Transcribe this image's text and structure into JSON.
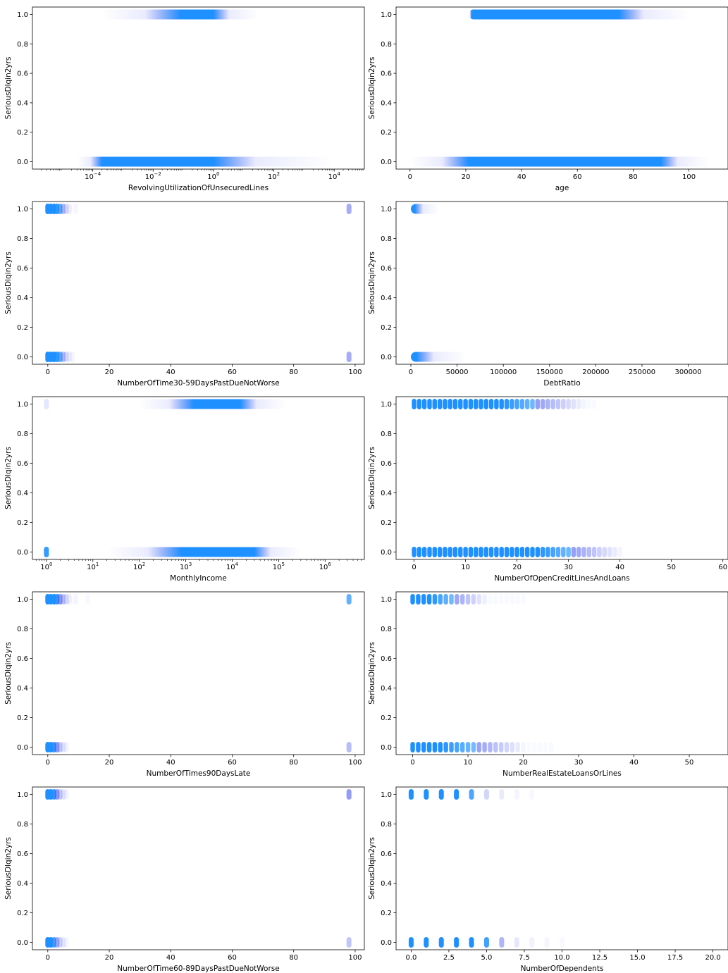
{
  "colors": {
    "point": "#1e90ff",
    "outlier": "#4b5cf0",
    "axis": "#000000",
    "background": "#ffffff"
  },
  "chart_data": [
    {
      "type": "scatter",
      "xlabel": "RevolvingUtilizationOfUnsecuredLines",
      "ylabel": "SeriousDlqin2yrs",
      "xscale": "log",
      "xlim": [
        1e-06,
        100000.0
      ],
      "ylim": [
        -0.05,
        1.05
      ],
      "xticks": [
        {
          "v": 0.0001,
          "b": "10",
          "e": "−4"
        },
        {
          "v": 0.01,
          "b": "10",
          "e": "−2"
        },
        {
          "v": 1,
          "b": "10",
          "e": "0"
        },
        {
          "v": 100,
          "b": "10",
          "e": "2"
        },
        {
          "v": 10000,
          "b": "10",
          "e": "4"
        }
      ],
      "yticks": [
        "0.0",
        "0.2",
        "0.4",
        "0.6",
        "0.8",
        "1.0"
      ],
      "bands": [
        {
          "y": 0,
          "from": 0.0002,
          "to": 1,
          "faint_from": 3e-05,
          "faint_to": 10000
        },
        {
          "y": 1,
          "from": 0.08,
          "to": 1,
          "faint_from": 0.0002,
          "faint_to": 30
        }
      ],
      "grid": false,
      "legend": "none"
    },
    {
      "type": "scatter",
      "xlabel": "age",
      "ylabel": "SeriousDlqin2yrs",
      "xscale": "linear",
      "xlim": [
        -5,
        114
      ],
      "ylim": [
        -0.05,
        1.05
      ],
      "xticks": [
        {
          "v": 0,
          "t": "0"
        },
        {
          "v": 20,
          "t": "20"
        },
        {
          "v": 40,
          "t": "40"
        },
        {
          "v": 60,
          "t": "60"
        },
        {
          "v": 80,
          "t": "80"
        },
        {
          "v": 100,
          "t": "100"
        }
      ],
      "yticks": [
        "0.0",
        "0.2",
        "0.4",
        "0.6",
        "0.8",
        "1.0"
      ],
      "bands": [
        {
          "y": 0,
          "from": 21,
          "to": 90,
          "faint_from": 0,
          "faint_to": 107
        },
        {
          "y": 1,
          "from": 22,
          "to": 75,
          "faint_from": 21,
          "faint_to": 100
        }
      ],
      "grid": false,
      "legend": "none"
    },
    {
      "type": "scatter",
      "xlabel": "NumberOfTime30-59DaysPastDueNotWorse",
      "ylabel": "SeriousDlqin2yrs",
      "xscale": "linear",
      "xlim": [
        -5,
        103
      ],
      "ylim": [
        -0.05,
        1.05
      ],
      "xticks": [
        {
          "v": 0,
          "t": "0"
        },
        {
          "v": 20,
          "t": "20"
        },
        {
          "v": 40,
          "t": "40"
        },
        {
          "v": 60,
          "t": "60"
        },
        {
          "v": 80,
          "t": "80"
        },
        {
          "v": 100,
          "t": "100"
        }
      ],
      "yticks": [
        "0.0",
        "0.2",
        "0.4",
        "0.6",
        "0.8",
        "1.0"
      ],
      "points": [
        {
          "x": 0,
          "y": 0,
          "a": 1
        },
        {
          "x": 1,
          "y": 0,
          "a": 1
        },
        {
          "x": 2,
          "y": 0,
          "a": 1
        },
        {
          "x": 3,
          "y": 0,
          "a": 0.9
        },
        {
          "x": 4,
          "y": 0,
          "a": 0.7
        },
        {
          "x": 5,
          "y": 0,
          "a": 0.4
        },
        {
          "x": 6,
          "y": 0,
          "a": 0.2
        },
        {
          "x": 7,
          "y": 0,
          "a": 0.1
        },
        {
          "x": 8,
          "y": 0,
          "a": 0.06
        },
        {
          "x": 98,
          "y": 0,
          "a": 0.5
        },
        {
          "x": 0,
          "y": 1,
          "a": 1
        },
        {
          "x": 1,
          "y": 1,
          "a": 1
        },
        {
          "x": 2,
          "y": 1,
          "a": 1
        },
        {
          "x": 3,
          "y": 1,
          "a": 0.9
        },
        {
          "x": 4,
          "y": 1,
          "a": 0.7
        },
        {
          "x": 5,
          "y": 1,
          "a": 0.4
        },
        {
          "x": 6,
          "y": 1,
          "a": 0.2
        },
        {
          "x": 7,
          "y": 1,
          "a": 0.1
        },
        {
          "x": 9,
          "y": 1,
          "a": 0.05
        },
        {
          "x": 98,
          "y": 1,
          "a": 0.5
        }
      ],
      "grid": false,
      "legend": "none"
    },
    {
      "type": "scatter",
      "xlabel": "DebtRatio",
      "ylabel": "SeriousDlqin2yrs",
      "xscale": "linear",
      "xlim": [
        -16000,
        343000
      ],
      "ylim": [
        -0.05,
        1.05
      ],
      "xticks": [
        {
          "v": 0,
          "t": "0"
        },
        {
          "v": 50000,
          "t": "50000"
        },
        {
          "v": 100000,
          "t": "100000"
        },
        {
          "v": 150000,
          "t": "150000"
        },
        {
          "v": 200000,
          "t": "200000"
        },
        {
          "v": 250000,
          "t": "250000"
        },
        {
          "v": 300000,
          "t": "300000"
        }
      ],
      "yticks": [
        "0.0",
        "0.2",
        "0.4",
        "0.6",
        "0.8",
        "1.0"
      ],
      "bands": [
        {
          "y": 0,
          "from": 0,
          "to": 6000,
          "faint_from": 0,
          "faint_to": 60000
        },
        {
          "y": 1,
          "from": 0,
          "to": 4000,
          "faint_from": 0,
          "faint_to": 30000
        }
      ],
      "grid": false,
      "legend": "none"
    },
    {
      "type": "scatter",
      "xlabel": "MonthlyIncome",
      "ylabel": "SeriousDlqin2yrs",
      "xscale": "log",
      "xlim": [
        0.5,
        7000000
      ],
      "ylim": [
        -0.05,
        1.05
      ],
      "xticks": [
        {
          "v": 1,
          "b": "10",
          "e": "0"
        },
        {
          "v": 10,
          "b": "10",
          "e": "1"
        },
        {
          "v": 100,
          "b": "10",
          "e": "2"
        },
        {
          "v": 1000,
          "b": "10",
          "e": "3"
        },
        {
          "v": 10000,
          "b": "10",
          "e": "4"
        },
        {
          "v": 100000,
          "b": "10",
          "e": "5"
        },
        {
          "v": 1000000,
          "b": "10",
          "e": "6"
        }
      ],
      "yticks": [
        "0.0",
        "0.2",
        "0.4",
        "0.6",
        "0.8",
        "1.0"
      ],
      "bands": [
        {
          "y": 0,
          "from": 800,
          "to": 30000,
          "faint_from": 20,
          "faint_to": 300000
        },
        {
          "y": 1,
          "from": 1500,
          "to": 15000,
          "faint_from": 100,
          "faint_to": 150000
        }
      ],
      "points": [
        {
          "x": 1,
          "y": 0,
          "a": 0.9
        },
        {
          "x": 1,
          "y": 1,
          "a": 0.15
        }
      ],
      "grid": false,
      "legend": "none"
    },
    {
      "type": "scatter",
      "xlabel": "NumberOfOpenCreditLinesAndLoans",
      "ylabel": "SeriousDlqin2yrs",
      "xscale": "linear",
      "xlim": [
        -3.5,
        61
      ],
      "ylim": [
        -0.05,
        1.05
      ],
      "xticks": [
        {
          "v": 0,
          "t": "0"
        },
        {
          "v": 10,
          "t": "10"
        },
        {
          "v": 20,
          "t": "20"
        },
        {
          "v": 30,
          "t": "30"
        },
        {
          "v": 40,
          "t": "40"
        },
        {
          "v": 50,
          "t": "50"
        },
        {
          "v": 60,
          "t": "60"
        }
      ],
      "yticks": [
        "0.0",
        "0.2",
        "0.4",
        "0.6",
        "0.8",
        "1.0"
      ],
      "discrete": [
        {
          "y": 0,
          "start": 0,
          "end": 40,
          "solid_to": 24,
          "fade_to": 40
        },
        {
          "y": 1,
          "start": 0,
          "end": 35,
          "solid_to": 17,
          "fade_to": 33
        }
      ],
      "grid": false,
      "legend": "none"
    },
    {
      "type": "scatter",
      "xlabel": "NumberOfTimes90DaysLate",
      "ylabel": "SeriousDlqin2yrs",
      "xscale": "linear",
      "xlim": [
        -5,
        103
      ],
      "ylim": [
        -0.05,
        1.05
      ],
      "xticks": [
        {
          "v": 0,
          "t": "0"
        },
        {
          "v": 20,
          "t": "20"
        },
        {
          "v": 40,
          "t": "40"
        },
        {
          "v": 60,
          "t": "60"
        },
        {
          "v": 80,
          "t": "80"
        },
        {
          "v": 100,
          "t": "100"
        }
      ],
      "yticks": [
        "0.0",
        "0.2",
        "0.4",
        "0.6",
        "0.8",
        "1.0"
      ],
      "points": [
        {
          "x": 0,
          "y": 0,
          "a": 1
        },
        {
          "x": 1,
          "y": 0,
          "a": 1
        },
        {
          "x": 2,
          "y": 0,
          "a": 0.9
        },
        {
          "x": 3,
          "y": 0,
          "a": 0.6
        },
        {
          "x": 4,
          "y": 0,
          "a": 0.3
        },
        {
          "x": 5,
          "y": 0,
          "a": 0.15
        },
        {
          "x": 6,
          "y": 0,
          "a": 0.08
        },
        {
          "x": 98,
          "y": 0,
          "a": 0.4
        },
        {
          "x": 0,
          "y": 1,
          "a": 1
        },
        {
          "x": 1,
          "y": 1,
          "a": 1
        },
        {
          "x": 2,
          "y": 1,
          "a": 1
        },
        {
          "x": 3,
          "y": 1,
          "a": 0.9
        },
        {
          "x": 4,
          "y": 1,
          "a": 0.6
        },
        {
          "x": 5,
          "y": 1,
          "a": 0.35
        },
        {
          "x": 6,
          "y": 1,
          "a": 0.2
        },
        {
          "x": 7,
          "y": 1,
          "a": 0.1
        },
        {
          "x": 9,
          "y": 1,
          "a": 0.06
        },
        {
          "x": 13,
          "y": 1,
          "a": 0.04
        },
        {
          "x": 98,
          "y": 1,
          "a": 0.7
        }
      ],
      "grid": false,
      "legend": "none"
    },
    {
      "type": "scatter",
      "xlabel": "NumberRealEstateLoansOrLines",
      "ylabel": "SeriousDlqin2yrs",
      "xscale": "linear",
      "xlim": [
        -3,
        57
      ],
      "ylim": [
        -0.05,
        1.05
      ],
      "xticks": [
        {
          "v": 0,
          "t": "0"
        },
        {
          "v": 10,
          "t": "10"
        },
        {
          "v": 20,
          "t": "20"
        },
        {
          "v": 30,
          "t": "30"
        },
        {
          "v": 40,
          "t": "40"
        },
        {
          "v": 50,
          "t": "50"
        }
      ],
      "yticks": [
        "0.0",
        "0.2",
        "0.4",
        "0.6",
        "0.8",
        "1.0"
      ],
      "discrete": [
        {
          "y": 0,
          "start": 0,
          "end": 25,
          "solid_to": 5,
          "fade_to": 20
        },
        {
          "y": 1,
          "start": 0,
          "end": 20,
          "solid_to": 3,
          "fade_to": 13
        }
      ],
      "grid": false,
      "legend": "none"
    },
    {
      "type": "scatter",
      "xlabel": "NumberOfTime60-89DaysPastDueNotWorse",
      "ylabel": "SeriousDlqin2yrs",
      "xscale": "linear",
      "xlim": [
        -5,
        103
      ],
      "ylim": [
        -0.05,
        1.05
      ],
      "xticks": [
        {
          "v": 0,
          "t": "0"
        },
        {
          "v": 20,
          "t": "20"
        },
        {
          "v": 40,
          "t": "40"
        },
        {
          "v": 60,
          "t": "60"
        },
        {
          "v": 80,
          "t": "80"
        },
        {
          "v": 100,
          "t": "100"
        }
      ],
      "yticks": [
        "0.0",
        "0.2",
        "0.4",
        "0.6",
        "0.8",
        "1.0"
      ],
      "points": [
        {
          "x": 0,
          "y": 0,
          "a": 1
        },
        {
          "x": 1,
          "y": 0,
          "a": 1
        },
        {
          "x": 2,
          "y": 0,
          "a": 0.8
        },
        {
          "x": 3,
          "y": 0,
          "a": 0.5
        },
        {
          "x": 4,
          "y": 0,
          "a": 0.25
        },
        {
          "x": 5,
          "y": 0,
          "a": 0.12
        },
        {
          "x": 6,
          "y": 0,
          "a": 0.06
        },
        {
          "x": 98,
          "y": 0,
          "a": 0.35
        },
        {
          "x": 0,
          "y": 1,
          "a": 1
        },
        {
          "x": 1,
          "y": 1,
          "a": 1
        },
        {
          "x": 2,
          "y": 1,
          "a": 0.9
        },
        {
          "x": 3,
          "y": 1,
          "a": 0.6
        },
        {
          "x": 4,
          "y": 1,
          "a": 0.3
        },
        {
          "x": 5,
          "y": 1,
          "a": 0.15
        },
        {
          "x": 6,
          "y": 1,
          "a": 0.08
        },
        {
          "x": 98,
          "y": 1,
          "a": 0.6
        }
      ],
      "grid": false,
      "legend": "none"
    },
    {
      "type": "scatter",
      "xlabel": "NumberOfDependents",
      "ylabel": "SeriousDlqin2yrs",
      "xscale": "linear",
      "xlim": [
        -1.0,
        21.0
      ],
      "ylim": [
        -0.05,
        1.05
      ],
      "xticks": [
        {
          "v": 0,
          "t": "0.0"
        },
        {
          "v": 2.5,
          "t": "2.5"
        },
        {
          "v": 5,
          "t": "5.0"
        },
        {
          "v": 7.5,
          "t": "7.5"
        },
        {
          "v": 10,
          "t": "10.0"
        },
        {
          "v": 12.5,
          "t": "12.5"
        },
        {
          "v": 15,
          "t": "15.0"
        },
        {
          "v": 17.5,
          "t": "17.5"
        },
        {
          "v": 20,
          "t": "20.0"
        }
      ],
      "yticks": [
        "0.0",
        "0.2",
        "0.4",
        "0.6",
        "0.8",
        "1.0"
      ],
      "points": [
        {
          "x": 0,
          "y": 0,
          "a": 1
        },
        {
          "x": 1,
          "y": 0,
          "a": 1
        },
        {
          "x": 2,
          "y": 0,
          "a": 1
        },
        {
          "x": 3,
          "y": 0,
          "a": 1
        },
        {
          "x": 4,
          "y": 0,
          "a": 1
        },
        {
          "x": 5,
          "y": 0,
          "a": 0.85
        },
        {
          "x": 6,
          "y": 0,
          "a": 0.45
        },
        {
          "x": 7,
          "y": 0,
          "a": 0.15
        },
        {
          "x": 8,
          "y": 0,
          "a": 0.08
        },
        {
          "x": 9,
          "y": 0,
          "a": 0.05
        },
        {
          "x": 10,
          "y": 0,
          "a": 0.04
        },
        {
          "x": 0,
          "y": 1,
          "a": 1
        },
        {
          "x": 1,
          "y": 1,
          "a": 1
        },
        {
          "x": 2,
          "y": 1,
          "a": 1
        },
        {
          "x": 3,
          "y": 1,
          "a": 1
        },
        {
          "x": 4,
          "y": 1,
          "a": 0.8
        },
        {
          "x": 5,
          "y": 1,
          "a": 0.25
        },
        {
          "x": 6,
          "y": 1,
          "a": 0.12
        },
        {
          "x": 7,
          "y": 1,
          "a": 0.06
        },
        {
          "x": 8,
          "y": 1,
          "a": 0.04
        }
      ],
      "grid": false,
      "legend": "none"
    }
  ]
}
